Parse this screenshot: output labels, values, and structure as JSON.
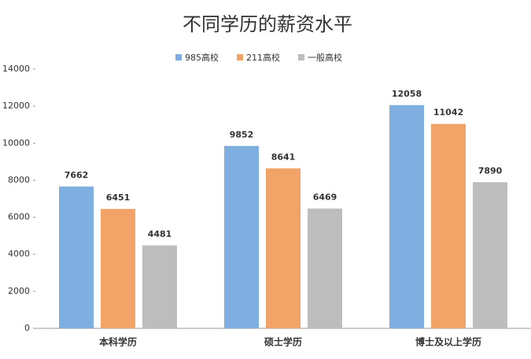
{
  "chart_data": {
    "type": "bar",
    "title": "不同学历的薪资水平",
    "categories": [
      "本科学历",
      "硕士学历",
      "博士及以上学历"
    ],
    "series": [
      {
        "name": "985高校",
        "color": "#7eafe0",
        "values": [
          7662,
          9852,
          12058
        ]
      },
      {
        "name": "211高校",
        "color": "#f2a468",
        "values": [
          6451,
          8641,
          11042
        ]
      },
      {
        "name": "一般高校",
        "color": "#bdbdbd",
        "values": [
          4481,
          6469,
          7890
        ]
      }
    ],
    "ylim": [
      0,
      14000
    ],
    "yticks": [
      0,
      2000,
      4000,
      6000,
      8000,
      10000,
      12000,
      14000
    ],
    "grid": false,
    "legend": "top"
  }
}
